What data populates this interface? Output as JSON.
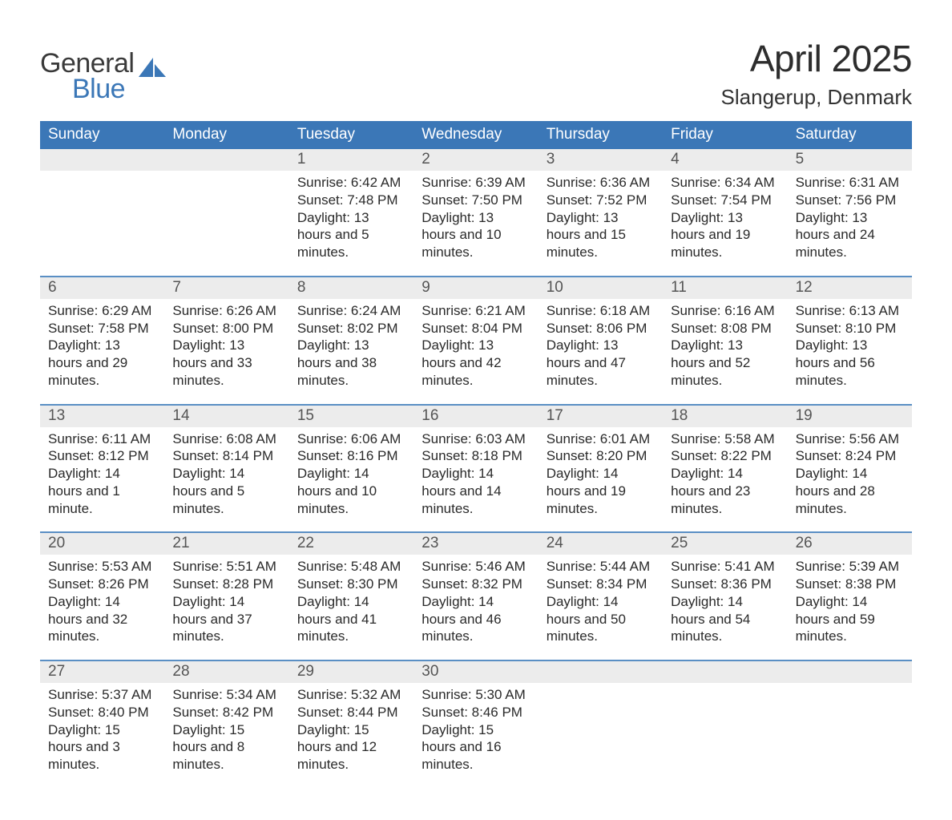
{
  "brand": {
    "word1": "General",
    "word2": "Blue",
    "mark_color": "#3b77b7"
  },
  "header": {
    "title": "April 2025",
    "location": "Slangerup, Denmark"
  },
  "colors": {
    "header_blue": "#3b77b7",
    "row_grey": "#ececec",
    "rule_blue": "#5a8fc4",
    "text": "#3a3a3a",
    "background": "#ffffff"
  },
  "daysOfWeek": [
    "Sunday",
    "Monday",
    "Tuesday",
    "Wednesday",
    "Thursday",
    "Friday",
    "Saturday"
  ],
  "weeks": [
    {
      "days": [
        {
          "n": "",
          "sunrise": "",
          "sunset": "",
          "daylight": ""
        },
        {
          "n": "",
          "sunrise": "",
          "sunset": "",
          "daylight": ""
        },
        {
          "n": "1",
          "sunrise": "6:42 AM",
          "sunset": "7:48 PM",
          "daylight": "13 hours and 5 minutes."
        },
        {
          "n": "2",
          "sunrise": "6:39 AM",
          "sunset": "7:50 PM",
          "daylight": "13 hours and 10 minutes."
        },
        {
          "n": "3",
          "sunrise": "6:36 AM",
          "sunset": "7:52 PM",
          "daylight": "13 hours and 15 minutes."
        },
        {
          "n": "4",
          "sunrise": "6:34 AM",
          "sunset": "7:54 PM",
          "daylight": "13 hours and 19 minutes."
        },
        {
          "n": "5",
          "sunrise": "6:31 AM",
          "sunset": "7:56 PM",
          "daylight": "13 hours and 24 minutes."
        }
      ]
    },
    {
      "days": [
        {
          "n": "6",
          "sunrise": "6:29 AM",
          "sunset": "7:58 PM",
          "daylight": "13 hours and 29 minutes."
        },
        {
          "n": "7",
          "sunrise": "6:26 AM",
          "sunset": "8:00 PM",
          "daylight": "13 hours and 33 minutes."
        },
        {
          "n": "8",
          "sunrise": "6:24 AM",
          "sunset": "8:02 PM",
          "daylight": "13 hours and 38 minutes."
        },
        {
          "n": "9",
          "sunrise": "6:21 AM",
          "sunset": "8:04 PM",
          "daylight": "13 hours and 42 minutes."
        },
        {
          "n": "10",
          "sunrise": "6:18 AM",
          "sunset": "8:06 PM",
          "daylight": "13 hours and 47 minutes."
        },
        {
          "n": "11",
          "sunrise": "6:16 AM",
          "sunset": "8:08 PM",
          "daylight": "13 hours and 52 minutes."
        },
        {
          "n": "12",
          "sunrise": "6:13 AM",
          "sunset": "8:10 PM",
          "daylight": "13 hours and 56 minutes."
        }
      ]
    },
    {
      "days": [
        {
          "n": "13",
          "sunrise": "6:11 AM",
          "sunset": "8:12 PM",
          "daylight": "14 hours and 1 minute."
        },
        {
          "n": "14",
          "sunrise": "6:08 AM",
          "sunset": "8:14 PM",
          "daylight": "14 hours and 5 minutes."
        },
        {
          "n": "15",
          "sunrise": "6:06 AM",
          "sunset": "8:16 PM",
          "daylight": "14 hours and 10 minutes."
        },
        {
          "n": "16",
          "sunrise": "6:03 AM",
          "sunset": "8:18 PM",
          "daylight": "14 hours and 14 minutes."
        },
        {
          "n": "17",
          "sunrise": "6:01 AM",
          "sunset": "8:20 PM",
          "daylight": "14 hours and 19 minutes."
        },
        {
          "n": "18",
          "sunrise": "5:58 AM",
          "sunset": "8:22 PM",
          "daylight": "14 hours and 23 minutes."
        },
        {
          "n": "19",
          "sunrise": "5:56 AM",
          "sunset": "8:24 PM",
          "daylight": "14 hours and 28 minutes."
        }
      ]
    },
    {
      "days": [
        {
          "n": "20",
          "sunrise": "5:53 AM",
          "sunset": "8:26 PM",
          "daylight": "14 hours and 32 minutes."
        },
        {
          "n": "21",
          "sunrise": "5:51 AM",
          "sunset": "8:28 PM",
          "daylight": "14 hours and 37 minutes."
        },
        {
          "n": "22",
          "sunrise": "5:48 AM",
          "sunset": "8:30 PM",
          "daylight": "14 hours and 41 minutes."
        },
        {
          "n": "23",
          "sunrise": "5:46 AM",
          "sunset": "8:32 PM",
          "daylight": "14 hours and 46 minutes."
        },
        {
          "n": "24",
          "sunrise": "5:44 AM",
          "sunset": "8:34 PM",
          "daylight": "14 hours and 50 minutes."
        },
        {
          "n": "25",
          "sunrise": "5:41 AM",
          "sunset": "8:36 PM",
          "daylight": "14 hours and 54 minutes."
        },
        {
          "n": "26",
          "sunrise": "5:39 AM",
          "sunset": "8:38 PM",
          "daylight": "14 hours and 59 minutes."
        }
      ]
    },
    {
      "days": [
        {
          "n": "27",
          "sunrise": "5:37 AM",
          "sunset": "8:40 PM",
          "daylight": "15 hours and 3 minutes."
        },
        {
          "n": "28",
          "sunrise": "5:34 AM",
          "sunset": "8:42 PM",
          "daylight": "15 hours and 8 minutes."
        },
        {
          "n": "29",
          "sunrise": "5:32 AM",
          "sunset": "8:44 PM",
          "daylight": "15 hours and 12 minutes."
        },
        {
          "n": "30",
          "sunrise": "5:30 AM",
          "sunset": "8:46 PM",
          "daylight": "15 hours and 16 minutes."
        },
        {
          "n": "",
          "sunrise": "",
          "sunset": "",
          "daylight": ""
        },
        {
          "n": "",
          "sunrise": "",
          "sunset": "",
          "daylight": ""
        },
        {
          "n": "",
          "sunrise": "",
          "sunset": "",
          "daylight": ""
        }
      ]
    }
  ],
  "labels": {
    "sunrise": "Sunrise: ",
    "sunset": "Sunset: ",
    "daylight": "Daylight: "
  },
  "typography": {
    "title_fontsize": 46,
    "subtitle_fontsize": 26,
    "dow_fontsize": 19,
    "daynum_fontsize": 19,
    "cell_fontsize": 17
  }
}
